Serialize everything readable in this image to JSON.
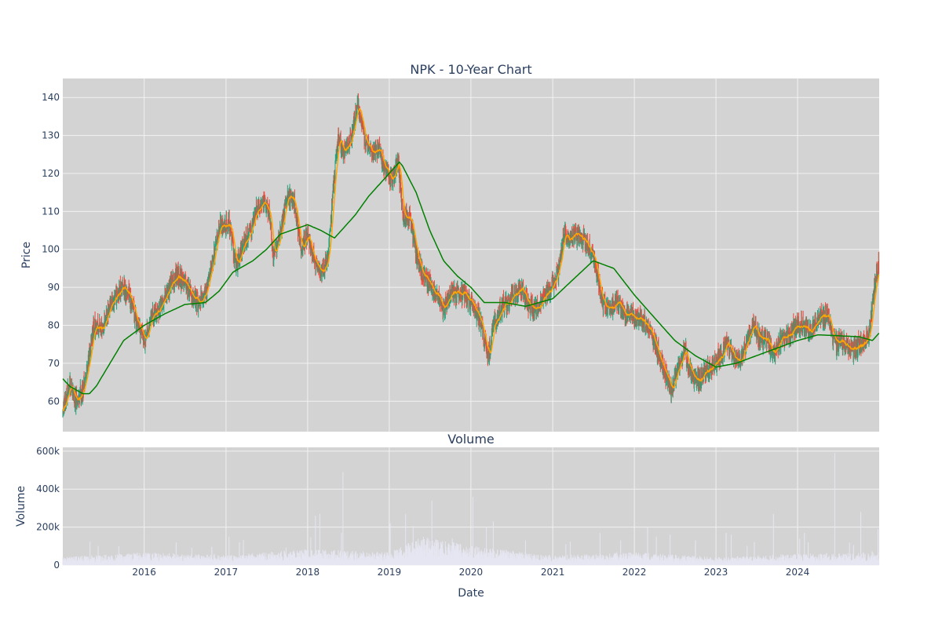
{
  "chart_data": [
    {
      "type": "candlestick",
      "title": "NPK - 10-Year Chart",
      "xlabel": "",
      "ylabel": "Price",
      "ylim": [
        52,
        145
      ],
      "yticks": [
        60,
        70,
        80,
        90,
        100,
        110,
        120,
        130,
        140
      ],
      "grid": true,
      "legend": "none",
      "colors": {
        "background": "#d3d3d3",
        "increasing": "#26a07a",
        "decreasing": "#ef4a3c",
        "ma_short": "#ffa500",
        "ma_long": "#008000"
      },
      "price_path": [
        [
          "2015-01-02",
          57
        ],
        [
          "2015-02-01",
          65
        ],
        [
          "2015-03-01",
          60
        ],
        [
          "2015-04-01",
          63
        ],
        [
          "2015-05-01",
          72
        ],
        [
          "2015-05-20",
          80
        ],
        [
          "2015-07-01",
          79
        ],
        [
          "2015-08-01",
          86
        ],
        [
          "2015-09-01",
          88
        ],
        [
          "2015-10-01",
          90
        ],
        [
          "2015-11-01",
          87
        ],
        [
          "2015-12-01",
          80
        ],
        [
          "2016-01-05",
          76
        ],
        [
          "2016-02-01",
          82
        ],
        [
          "2016-03-01",
          84
        ],
        [
          "2016-04-01",
          87
        ],
        [
          "2016-05-01",
          91
        ],
        [
          "2016-06-01",
          93
        ],
        [
          "2016-07-01",
          91
        ],
        [
          "2016-08-01",
          88
        ],
        [
          "2016-09-01",
          86
        ],
        [
          "2016-10-01",
          88
        ],
        [
          "2016-11-01",
          97
        ],
        [
          "2016-12-01",
          106
        ],
        [
          "2017-01-15",
          107
        ],
        [
          "2017-02-15",
          95
        ],
        [
          "2017-03-15",
          101
        ],
        [
          "2017-04-15",
          104
        ],
        [
          "2017-05-15",
          110
        ],
        [
          "2017-06-15",
          112
        ],
        [
          "2017-07-15",
          109
        ],
        [
          "2017-08-01",
          98
        ],
        [
          "2017-09-01",
          104
        ],
        [
          "2017-10-01",
          114
        ],
        [
          "2017-11-01",
          113
        ],
        [
          "2017-12-01",
          100
        ],
        [
          "2018-01-01",
          104
        ],
        [
          "2018-02-01",
          97
        ],
        [
          "2018-03-01",
          94
        ],
        [
          "2018-04-01",
          97
        ],
        [
          "2018-05-01",
          120
        ],
        [
          "2018-05-20",
          130
        ],
        [
          "2018-06-15",
          125
        ],
        [
          "2018-07-15",
          130
        ],
        [
          "2018-08-15",
          138
        ],
        [
          "2018-09-15",
          128
        ],
        [
          "2018-10-15",
          126
        ],
        [
          "2018-11-15",
          126
        ],
        [
          "2018-12-15",
          121
        ],
        [
          "2019-01-15",
          118
        ],
        [
          "2019-02-10",
          123
        ],
        [
          "2019-03-01",
          109
        ],
        [
          "2019-04-01",
          109
        ],
        [
          "2019-05-01",
          99
        ],
        [
          "2019-06-01",
          93
        ],
        [
          "2019-07-01",
          91
        ],
        [
          "2019-08-01",
          88
        ],
        [
          "2019-09-01",
          84
        ],
        [
          "2019-10-01",
          89
        ],
        [
          "2019-11-01",
          88
        ],
        [
          "2019-12-01",
          88
        ],
        [
          "2020-01-15",
          86
        ],
        [
          "2020-02-15",
          80
        ],
        [
          "2020-03-20",
          72
        ],
        [
          "2020-04-15",
          81
        ],
        [
          "2020-05-15",
          84
        ],
        [
          "2020-06-15",
          86
        ],
        [
          "2020-07-15",
          88
        ],
        [
          "2020-08-15",
          90
        ],
        [
          "2020-09-15",
          85
        ],
        [
          "2020-10-15",
          84
        ],
        [
          "2020-11-15",
          87
        ],
        [
          "2020-12-15",
          89
        ],
        [
          "2021-01-15",
          92
        ],
        [
          "2021-02-01",
          96
        ],
        [
          "2021-02-20",
          105
        ],
        [
          "2021-03-15",
          103
        ],
        [
          "2021-04-15",
          104
        ],
        [
          "2021-05-15",
          103
        ],
        [
          "2021-06-15",
          101
        ],
        [
          "2021-07-15",
          95
        ],
        [
          "2021-08-15",
          85
        ],
        [
          "2021-09-15",
          84
        ],
        [
          "2021-10-15",
          86
        ],
        [
          "2021-11-15",
          83
        ],
        [
          "2021-12-15",
          83
        ],
        [
          "2022-01-15",
          82
        ],
        [
          "2022-02-15",
          81
        ],
        [
          "2022-03-15",
          78
        ],
        [
          "2022-04-15",
          73
        ],
        [
          "2022-05-15",
          68
        ],
        [
          "2022-06-15",
          63
        ],
        [
          "2022-07-15",
          68
        ],
        [
          "2022-08-15",
          74
        ],
        [
          "2022-09-15",
          66
        ],
        [
          "2022-10-15",
          65
        ],
        [
          "2022-11-15",
          68
        ],
        [
          "2022-12-15",
          69
        ],
        [
          "2023-01-15",
          71
        ],
        [
          "2023-02-15",
          75
        ],
        [
          "2023-03-15",
          73
        ],
        [
          "2023-04-15",
          70
        ],
        [
          "2023-05-15",
          75
        ],
        [
          "2023-06-15",
          80
        ],
        [
          "2023-07-15",
          77
        ],
        [
          "2023-08-15",
          76
        ],
        [
          "2023-09-15",
          73
        ],
        [
          "2023-10-15",
          76
        ],
        [
          "2023-11-15",
          77
        ],
        [
          "2023-12-15",
          79
        ],
        [
          "2024-01-15",
          81
        ],
        [
          "2024-02-15",
          79
        ],
        [
          "2024-03-15",
          80
        ],
        [
          "2024-04-15",
          82
        ],
        [
          "2024-05-15",
          83
        ],
        [
          "2024-06-15",
          75
        ],
        [
          "2024-07-15",
          76
        ],
        [
          "2024-08-15",
          74
        ],
        [
          "2024-09-15",
          74
        ],
        [
          "2024-10-15",
          75
        ],
        [
          "2024-11-15",
          77
        ],
        [
          "2024-12-10",
          90
        ],
        [
          "2024-12-31",
          97
        ]
      ],
      "ma_long_path": [
        [
          "2015-01-01",
          66
        ],
        [
          "2015-02-01",
          64
        ],
        [
          "2015-04-01",
          62
        ],
        [
          "2015-05-01",
          62
        ],
        [
          "2015-06-01",
          64
        ],
        [
          "2015-08-01",
          70
        ],
        [
          "2015-10-01",
          76
        ],
        [
          "2016-01-01",
          80
        ],
        [
          "2016-04-01",
          83
        ],
        [
          "2016-07-01",
          85.5
        ],
        [
          "2016-10-01",
          86
        ],
        [
          "2016-12-01",
          89
        ],
        [
          "2017-02-01",
          94
        ],
        [
          "2017-05-01",
          97
        ],
        [
          "2017-07-01",
          100
        ],
        [
          "2017-09-01",
          104
        ],
        [
          "2018-01-01",
          106.5
        ],
        [
          "2018-03-01",
          105
        ],
        [
          "2018-05-01",
          103
        ],
        [
          "2018-06-01",
          105
        ],
        [
          "2018-08-01",
          109
        ],
        [
          "2018-10-01",
          114
        ],
        [
          "2019-01-01",
          120
        ],
        [
          "2019-02-15",
          123
        ],
        [
          "2019-03-01",
          122
        ],
        [
          "2019-05-01",
          115
        ],
        [
          "2019-07-01",
          105
        ],
        [
          "2019-09-01",
          97
        ],
        [
          "2019-11-01",
          93
        ],
        [
          "2020-01-01",
          90
        ],
        [
          "2020-03-01",
          86
        ],
        [
          "2020-06-01",
          86
        ],
        [
          "2020-09-01",
          85
        ],
        [
          "2021-01-01",
          87
        ],
        [
          "2021-04-01",
          92
        ],
        [
          "2021-07-01",
          97
        ],
        [
          "2021-10-01",
          95
        ],
        [
          "2022-01-01",
          88
        ],
        [
          "2022-04-01",
          82
        ],
        [
          "2022-07-01",
          76
        ],
        [
          "2022-10-01",
          72
        ],
        [
          "2023-01-01",
          69
        ],
        [
          "2023-04-01",
          70
        ],
        [
          "2023-07-01",
          72
        ],
        [
          "2023-10-01",
          74
        ],
        [
          "2024-01-01",
          76
        ],
        [
          "2024-04-01",
          77.5
        ],
        [
          "2024-10-01",
          77
        ],
        [
          "2024-12-01",
          76
        ],
        [
          "2024-12-31",
          78
        ]
      ]
    },
    {
      "type": "bar",
      "title": "Volume",
      "xlabel": "Date",
      "ylabel": "Volume",
      "ylim": [
        0,
        620000
      ],
      "yticks": [
        0,
        200000,
        400000,
        600000
      ],
      "ytick_labels": [
        "0",
        "200k",
        "400k",
        "600k"
      ],
      "xticks": [
        "2016",
        "2017",
        "2018",
        "2019",
        "2020",
        "2021",
        "2022",
        "2023",
        "2024"
      ],
      "grid": true,
      "legend": "none",
      "colors": {
        "bar": "#e6e6f2"
      },
      "base_level": [
        [
          "2015-01-01",
          25000
        ],
        [
          "2016-01-01",
          40000
        ],
        [
          "2017-01-01",
          30000
        ],
        [
          "2018-01-01",
          50000
        ],
        [
          "2019-01-01",
          40000
        ],
        [
          "2019-06-01",
          90000
        ],
        [
          "2020-01-01",
          60000
        ],
        [
          "2021-01-01",
          30000
        ],
        [
          "2022-01-01",
          40000
        ],
        [
          "2023-01-01",
          25000
        ],
        [
          "2024-01-01",
          35000
        ],
        [
          "2024-12-31",
          40000
        ]
      ],
      "spikes": [
        [
          "2015-09-10",
          100000
        ],
        [
          "2016-08-01",
          90000
        ],
        [
          "2017-01-15",
          150000
        ],
        [
          "2017-03-01",
          120000
        ],
        [
          "2018-02-05",
          260000
        ],
        [
          "2018-02-25",
          270000
        ],
        [
          "2018-06-01",
          170000
        ],
        [
          "2018-06-08",
          490000
        ],
        [
          "2019-01-05",
          220000
        ],
        [
          "2019-03-15",
          270000
        ],
        [
          "2019-07-10",
          340000
        ],
        [
          "2019-10-10",
          140000
        ],
        [
          "2020-01-10",
          360000
        ],
        [
          "2020-04-10",
          230000
        ],
        [
          "2020-09-01",
          130000
        ],
        [
          "2021-03-01",
          110000
        ],
        [
          "2021-08-01",
          170000
        ],
        [
          "2021-11-01",
          130000
        ],
        [
          "2022-03-01",
          200000
        ],
        [
          "2022-04-10",
          150000
        ],
        [
          "2022-06-10",
          160000
        ],
        [
          "2022-10-01",
          130000
        ],
        [
          "2023-02-15",
          170000
        ],
        [
          "2023-03-10",
          160000
        ],
        [
          "2023-09-15",
          270000
        ],
        [
          "2024-01-10",
          140000
        ],
        [
          "2024-02-01",
          170000
        ],
        [
          "2024-06-15",
          590000
        ],
        [
          "2024-10-10",
          280000
        ],
        [
          "2024-12-25",
          190000
        ]
      ]
    }
  ]
}
